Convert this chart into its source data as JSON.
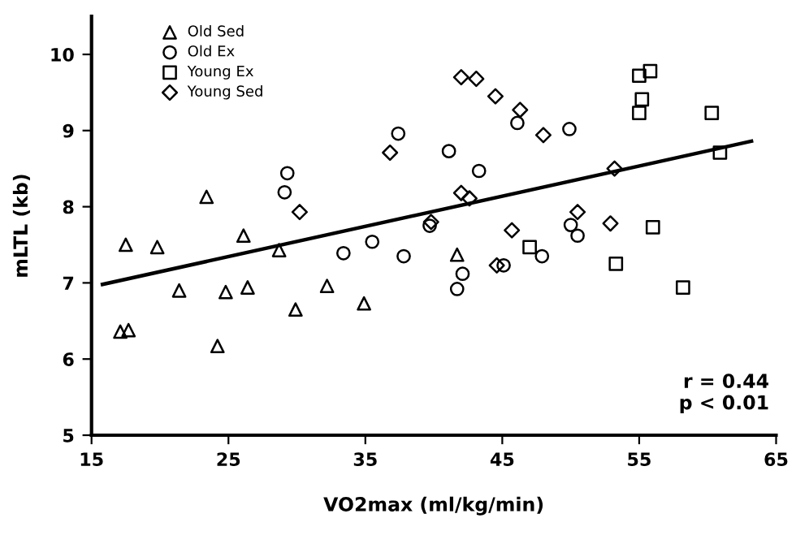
{
  "chart_data": {
    "type": "scatter",
    "xlabel": "VO2max (ml/kg/min)",
    "ylabel": "mLTL (kb)",
    "xlim": [
      15,
      65
    ],
    "xticks": [
      15,
      25,
      35,
      45,
      55,
      65
    ],
    "ylim": [
      5,
      10.5
    ],
    "yticks": [
      5,
      6,
      7,
      8,
      9,
      10
    ],
    "grid": false,
    "legend": "top left",
    "series": [
      {
        "name": "Old Sed",
        "color": "#000000",
        "marker": "triangle",
        "x": [
          17.5,
          19.8,
          23.4,
          26.1,
          28.7,
          21.4,
          24.8,
          26.4,
          17.1,
          17.7,
          24.2,
          29.9,
          32.2,
          34.9,
          41.7
        ],
        "values": [
          7.5,
          7.47,
          8.13,
          7.62,
          7.43,
          6.9,
          6.88,
          6.94,
          6.36,
          6.38,
          6.17,
          6.65,
          6.96,
          6.73,
          7.37
        ]
      },
      {
        "name": "Old Ex",
        "color": "#000000",
        "marker": "circle",
        "x": [
          29.3,
          29.1,
          33.4,
          35.5,
          37.4,
          41.1,
          43.3,
          46.1,
          49.9,
          39.7,
          50.0,
          50.5,
          37.8,
          42.1,
          41.7,
          47.9,
          45.1
        ],
        "values": [
          8.44,
          8.19,
          7.39,
          7.54,
          8.96,
          8.73,
          8.47,
          9.1,
          9.02,
          7.75,
          7.76,
          7.62,
          7.35,
          7.12,
          6.92,
          7.35,
          7.23
        ]
      },
      {
        "name": "Young Ex",
        "color": "#000000",
        "marker": "square",
        "x": [
          55.0,
          55.8,
          55.2,
          55.0,
          60.3,
          60.9,
          56.0,
          47.0,
          53.3,
          58.2
        ],
        "values": [
          9.72,
          9.78,
          9.41,
          9.23,
          9.23,
          8.71,
          7.73,
          7.47,
          7.25,
          6.94
        ]
      },
      {
        "name": "Young Sed",
        "color": "#000000",
        "marker": "diamond",
        "x": [
          30.2,
          36.8,
          42.0,
          43.1,
          44.5,
          46.3,
          48.0,
          53.2,
          42.0,
          42.6,
          39.8,
          50.5,
          52.9,
          45.7,
          44.6
        ],
        "values": [
          7.93,
          8.71,
          9.7,
          9.68,
          9.45,
          9.27,
          8.94,
          8.5,
          8.18,
          8.11,
          7.8,
          7.93,
          7.78,
          7.69,
          7.23
        ]
      },
      {
        "type": "line",
        "color": "#000000",
        "x": [
          15.8,
          63.2
        ],
        "values": [
          6.98,
          8.86
        ]
      }
    ],
    "annotations": [
      "r = 0.44\np < 0.01"
    ]
  }
}
